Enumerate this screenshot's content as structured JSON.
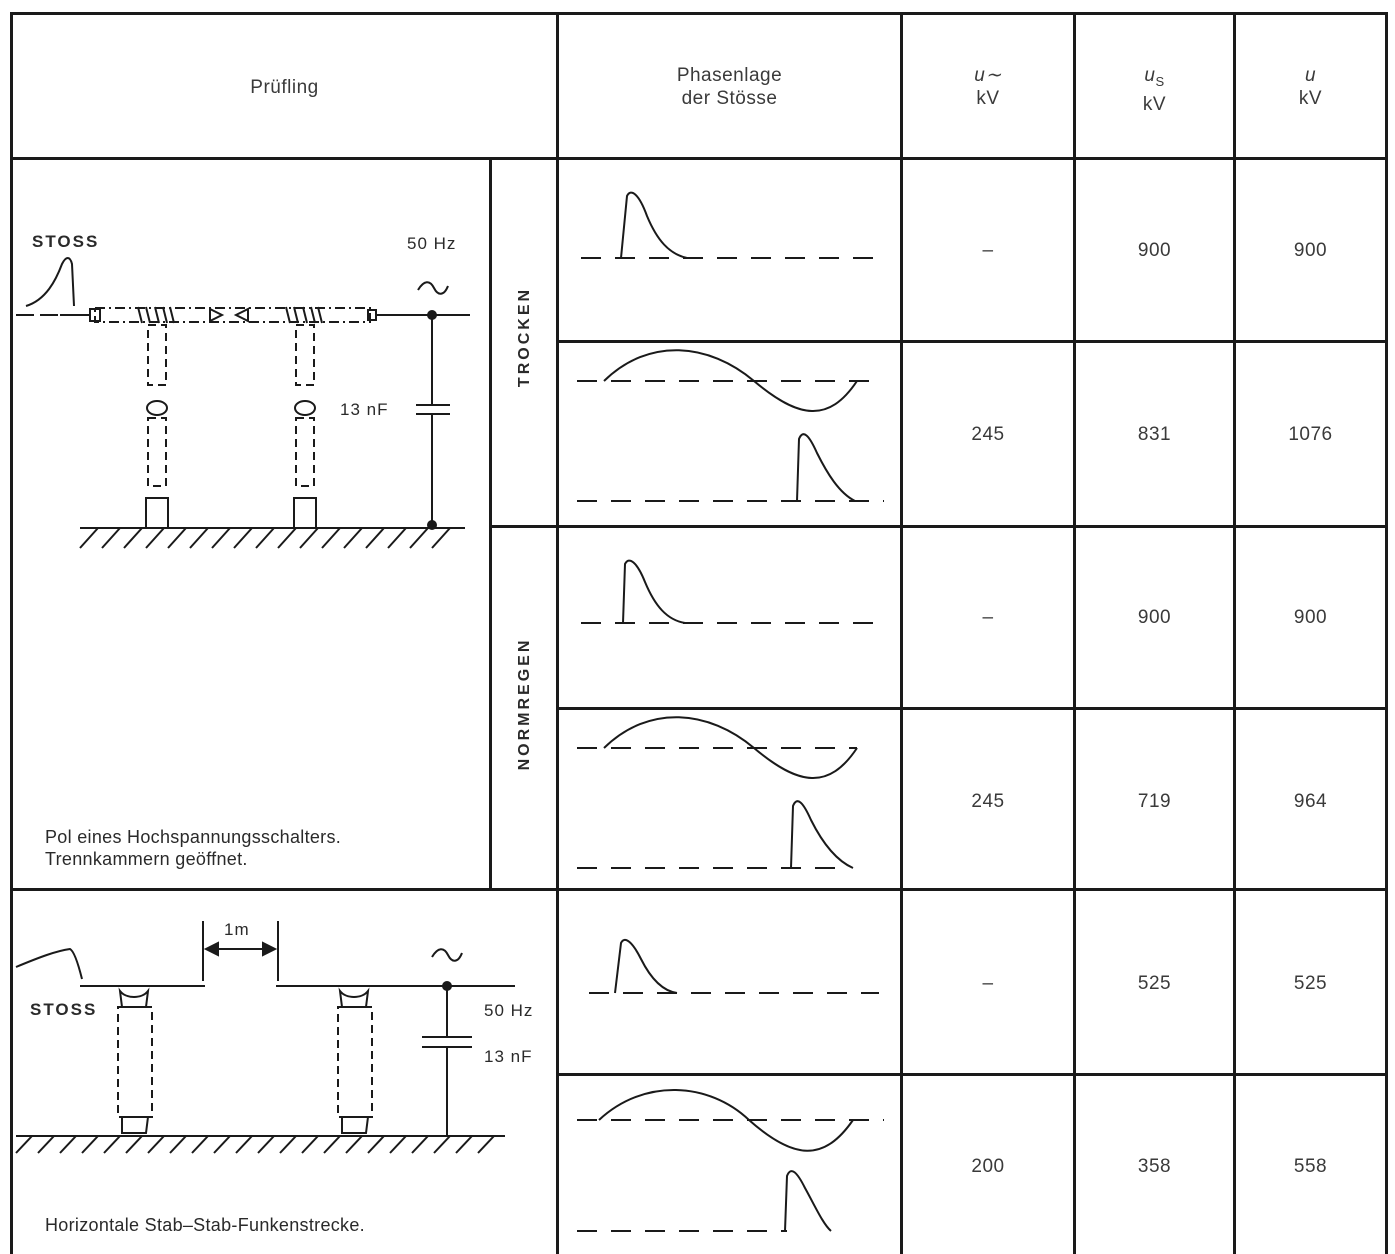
{
  "header": {
    "pruefling": "Prüfling",
    "phasenlage_line1": "Phasenlage",
    "phasenlage_line2": "der Stösse",
    "u_ac_symbol": "u∼",
    "u_ac_unit": "kV",
    "us_symbol": "u",
    "us_sub": "S",
    "us_unit": "kV",
    "u_symbol": "u",
    "u_unit": "kV"
  },
  "section1": {
    "stoss_label": "STOSS",
    "freq_label": "50 Hz",
    "ac_symbol": "~",
    "cap_label": "13 nF",
    "caption_line1": "Pol eines Hochspannungsschalters.",
    "caption_line2": "Trennkammern geöffnet.",
    "cond_dry": "TROCKEN",
    "cond_rain": "NORMREGEN"
  },
  "section2": {
    "stoss_label": "STOSS",
    "freq_label": "50 Hz",
    "ac_symbol": "~",
    "cap_label": "13 nF",
    "distance_label": "1m",
    "caption": "Horizontale Stab–Stab-Funkenstrecke."
  },
  "rows": [
    {
      "u_ac": "–",
      "us": "900",
      "u": "900"
    },
    {
      "u_ac": "245",
      "us": "831",
      "u": "1076"
    },
    {
      "u_ac": "–",
      "us": "900",
      "u": "900"
    },
    {
      "u_ac": "245",
      "us": "719",
      "u": "964"
    },
    {
      "u_ac": "–",
      "us": "525",
      "u": "525"
    },
    {
      "u_ac": "200",
      "us": "358",
      "u": "558"
    }
  ]
}
